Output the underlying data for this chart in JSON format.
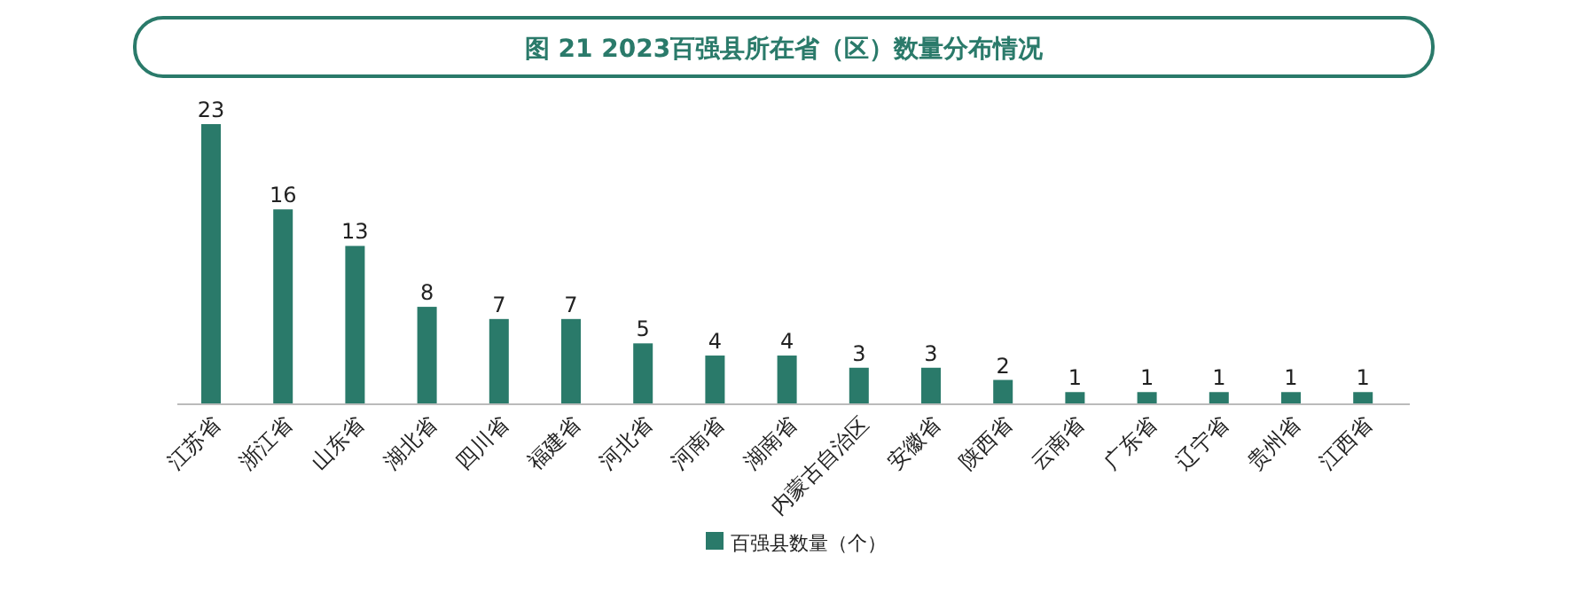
{
  "chart_data": {
    "type": "bar",
    "title": "图 21  2023百强县所在省（区）数量分布情况",
    "categories": [
      "江苏省",
      "浙江省",
      "山东省",
      "湖北省",
      "四川省",
      "福建省",
      "河北省",
      "河南省",
      "湖南省",
      "内蒙古自治区",
      "安徽省",
      "陕西省",
      "云南省",
      "广东省",
      "辽宁省",
      "贵州省",
      "江西省"
    ],
    "series": [
      {
        "name": "百强县数量（个）",
        "color": "#2a7a6a",
        "values": [
          23,
          16,
          13,
          8,
          7,
          7,
          5,
          4,
          4,
          3,
          3,
          2,
          1,
          1,
          1,
          1,
          1
        ]
      }
    ],
    "data_labels": true,
    "legend": "bottom"
  }
}
